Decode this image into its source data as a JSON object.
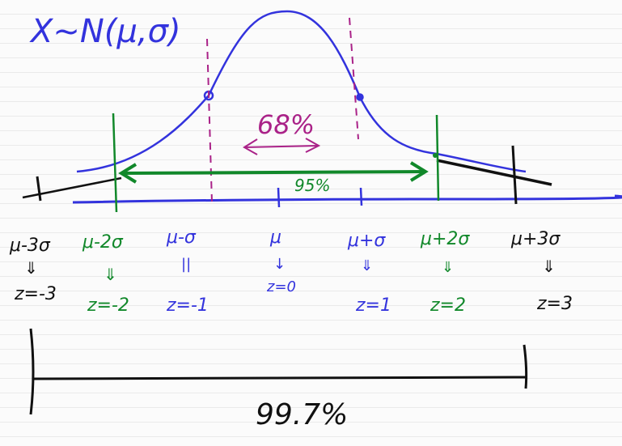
{
  "title": "X~N(μ,σ)",
  "colors": {
    "curve": "#3333dd",
    "sigma1": "#aa2288",
    "sigma2": "#11882a",
    "sigma3": "#111111"
  },
  "intervals": {
    "one_sigma": "68%",
    "two_sigma": "95%",
    "three_sigma": "99.7%"
  },
  "points": [
    {
      "id": "m3",
      "mu_label": "μ-3σ",
      "arrow": "⇓",
      "z_label": "z=-3",
      "color": "#111111"
    },
    {
      "id": "m2",
      "mu_label": "μ-2σ",
      "arrow": "⇓",
      "z_label": "z=-2",
      "color": "#11882a"
    },
    {
      "id": "m1",
      "mu_label": "μ-σ",
      "arrow": "||",
      "z_label": "z=-1",
      "color": "#3333dd"
    },
    {
      "id": "c0",
      "mu_label": "μ",
      "arrow": "↓",
      "z_label": "z=0",
      "color": "#3333dd"
    },
    {
      "id": "p1",
      "mu_label": "μ+σ",
      "arrow": "⇓",
      "z_label": "z=1",
      "color": "#3333dd"
    },
    {
      "id": "p2",
      "mu_label": "μ+2σ",
      "arrow": "⇓",
      "z_label": "z=2",
      "color": "#11882a"
    },
    {
      "id": "p3",
      "mu_label": "μ+3σ",
      "arrow": "⇓",
      "z_label": "z=3",
      "color": "#111111"
    }
  ]
}
